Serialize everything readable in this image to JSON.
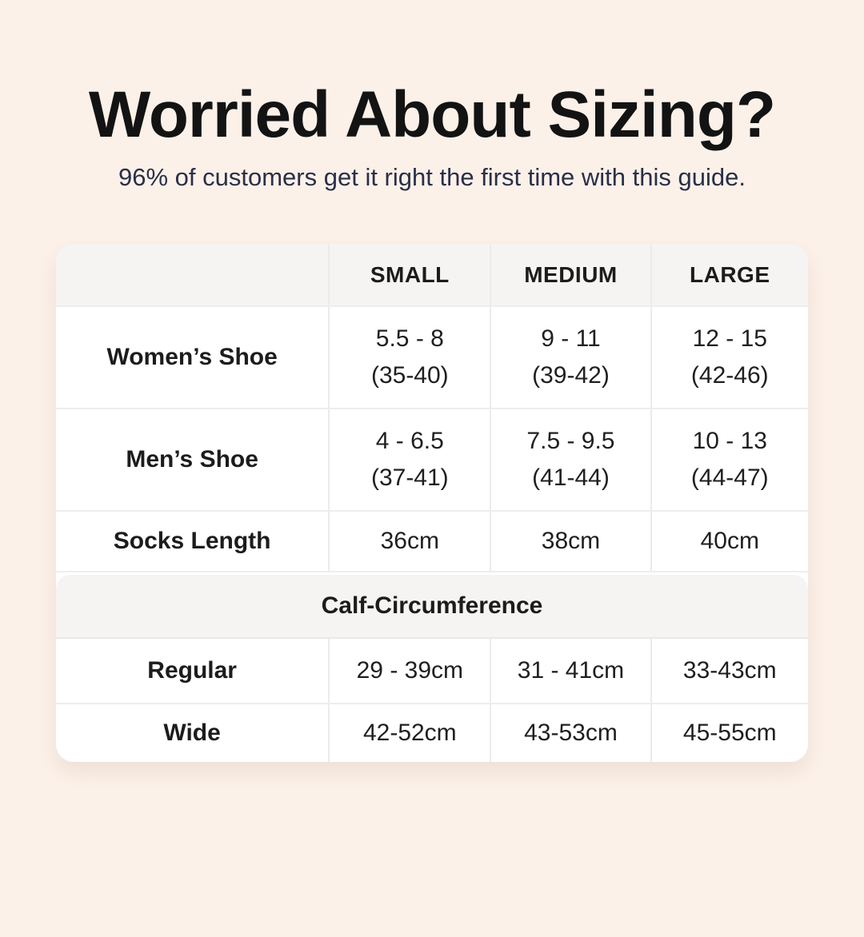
{
  "colors": {
    "page_background": "#FCF1E9",
    "card_background": "#FFFFFF",
    "band_background": "#F5F4F2",
    "divider": "#ECEBEA",
    "title_text": "#131313",
    "subtitle_text": "#2A2F48",
    "table_text": "#1F1F1F"
  },
  "hero": {
    "title": "Worried About Sizing?",
    "subtitle": "96% of customers get it right the first time with this guide."
  },
  "size_table": {
    "headers": [
      "",
      "SMALL",
      "MEDIUM",
      "LARGE"
    ],
    "rows": [
      {
        "label": "Women’s Shoe",
        "cells": [
          [
            "5.5 - 8",
            "(35-40)"
          ],
          [
            "9 - 11",
            "(39-42)"
          ],
          [
            "12 - 15",
            "(42-46)"
          ]
        ]
      },
      {
        "label": "Men’s Shoe",
        "cells": [
          [
            "4 - 6.5",
            "(37-41)"
          ],
          [
            "7.5 - 9.5",
            "(41-44)"
          ],
          [
            "10 - 13",
            "(44-47)"
          ]
        ]
      },
      {
        "label": "Socks Length",
        "cells": [
          [
            "36cm"
          ],
          [
            "38cm"
          ],
          [
            "40cm"
          ]
        ]
      }
    ],
    "calf_section": {
      "title": "Calf-Circumference",
      "rows": [
        {
          "label": "Regular",
          "cells": [
            [
              "29 - 39cm"
            ],
            [
              "31 - 41cm"
            ],
            [
              "33-43cm"
            ]
          ]
        },
        {
          "label": "Wide",
          "cells": [
            [
              "42-52cm"
            ],
            [
              "43-53cm"
            ],
            [
              "45-55cm"
            ]
          ]
        }
      ]
    }
  },
  "chart_data": {
    "type": "table",
    "title": "Worried About Sizing?",
    "subtitle": "96% of customers get it right the first time with this guide.",
    "columns": [
      "",
      "SMALL",
      "MEDIUM",
      "LARGE"
    ],
    "rows": [
      [
        "Women’s Shoe",
        "5.5 - 8 (35-40)",
        "9 - 11 (39-42)",
        "12 - 15 (42-46)"
      ],
      [
        "Men’s Shoe",
        "4 - 6.5 (37-41)",
        "7.5 - 9.5 (41-44)",
        "10 - 13 (44-47)"
      ],
      [
        "Socks Length",
        "36cm",
        "38cm",
        "40cm"
      ],
      [
        "Calf-Circumference",
        "",
        "",
        ""
      ],
      [
        "Regular",
        "29 - 39cm",
        "31 - 41cm",
        "33-43cm"
      ],
      [
        "Wide",
        "42-52cm",
        "43-53cm",
        "45-55cm"
      ]
    ],
    "layout": {
      "section_band_row": 3,
      "header_background": "#F5F4F2",
      "grid": "on"
    }
  }
}
